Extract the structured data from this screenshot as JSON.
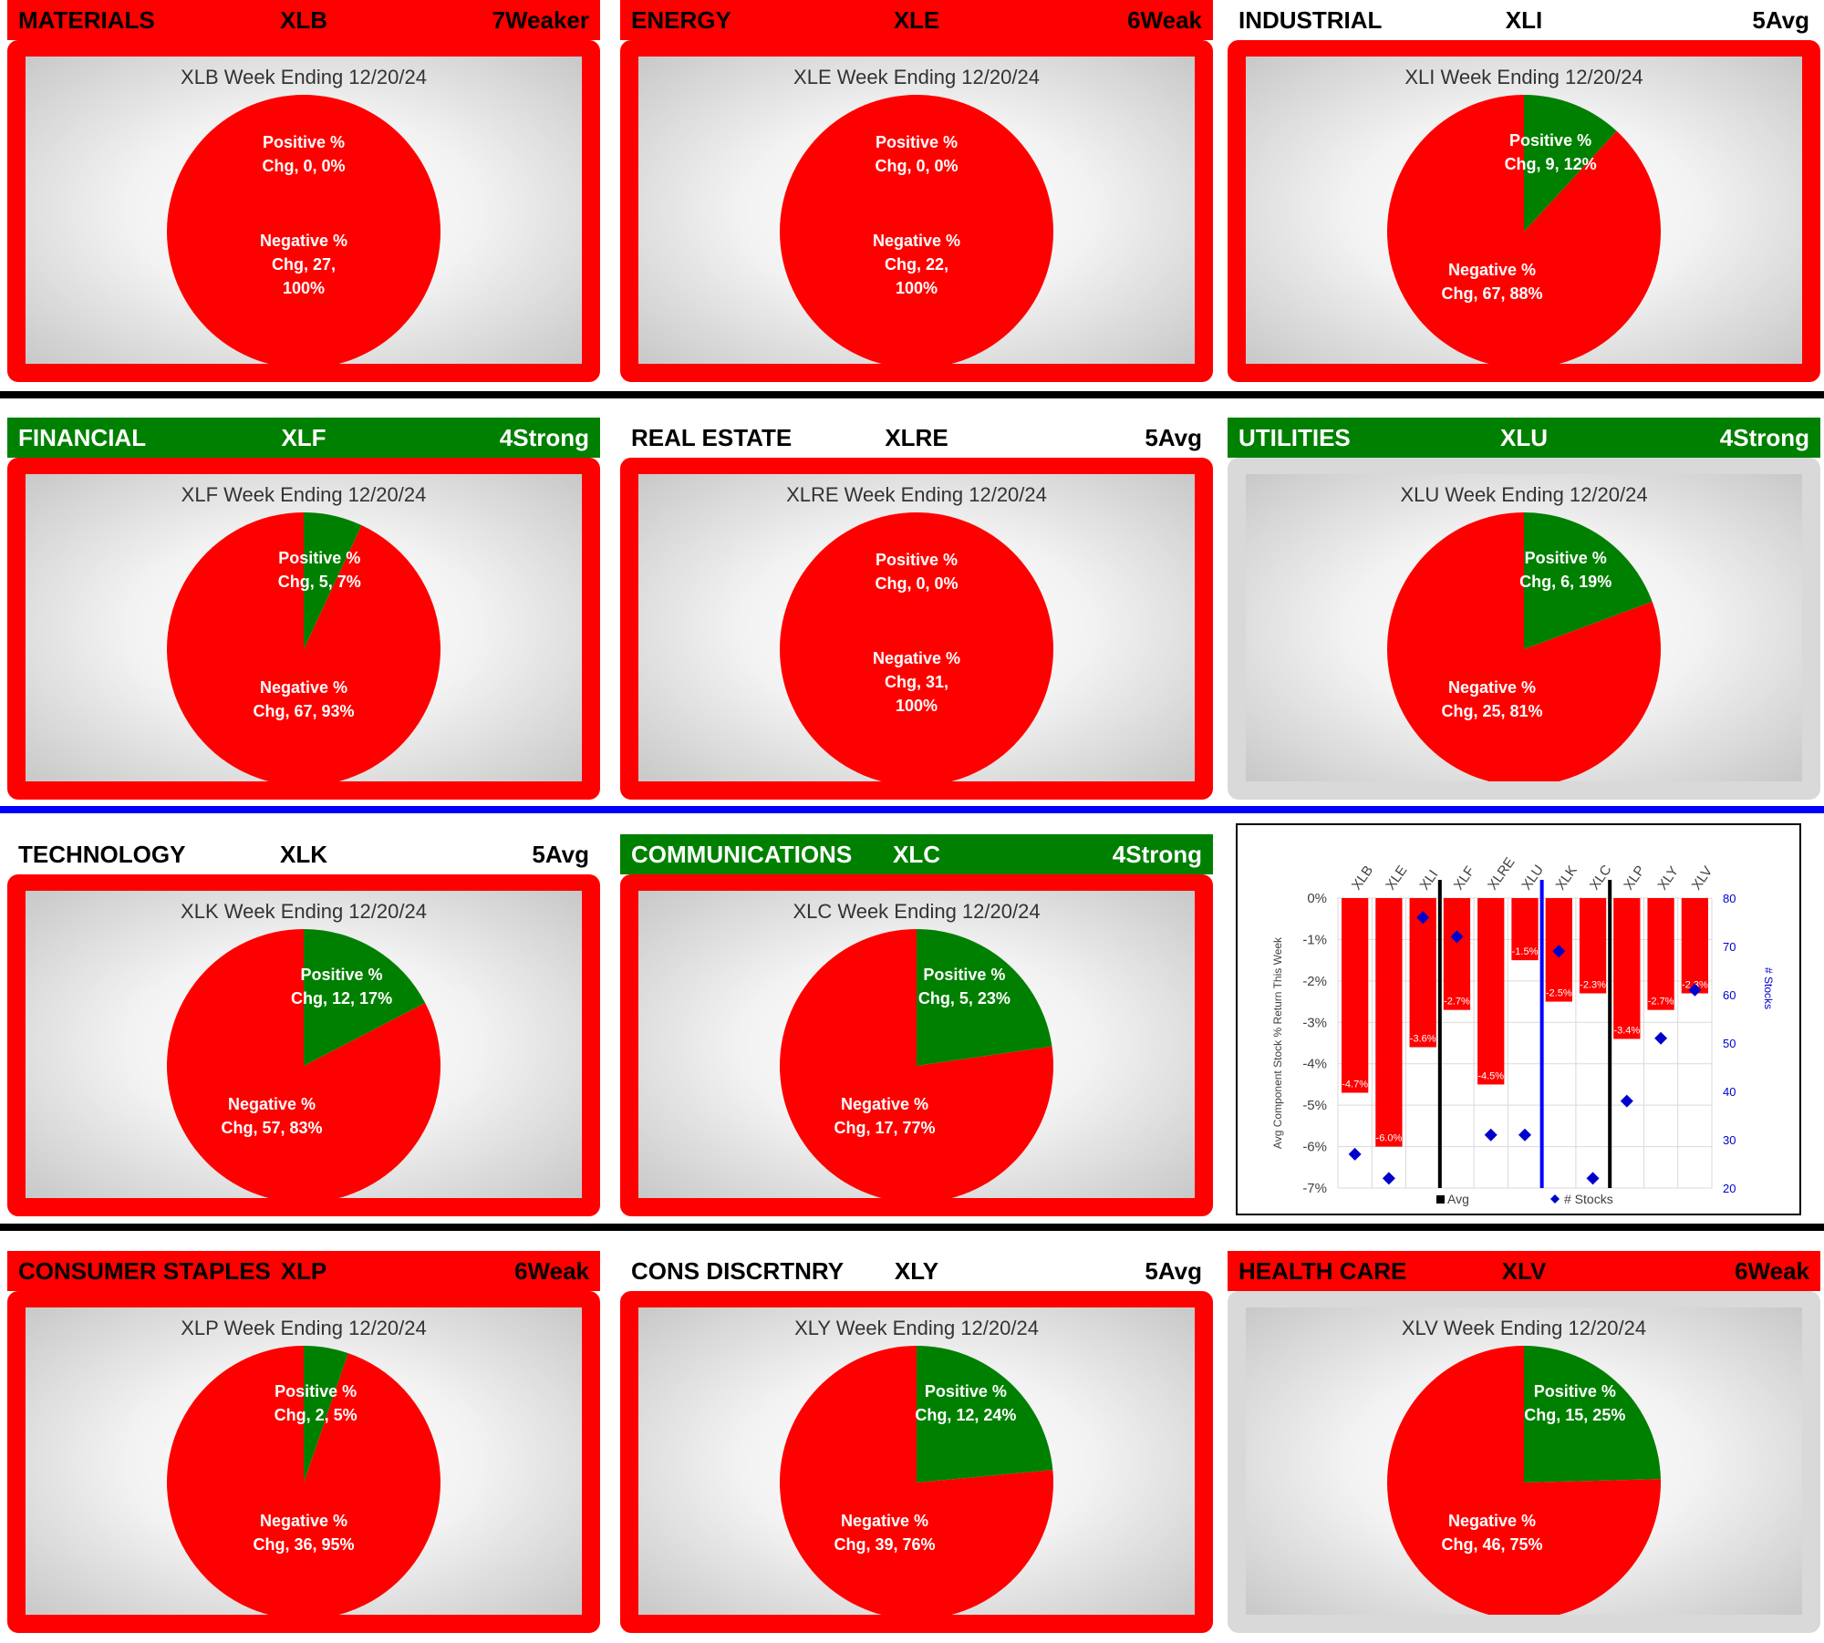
{
  "colors": {
    "negative": "#ff0000",
    "positive": "#008000",
    "frame_red": "#ff0000",
    "frame_gray": "#d9d9d9",
    "separator_black": "#000000",
    "separator_blue": "#0000ff",
    "marker_blue": "#0000cc"
  },
  "panels": [
    {
      "sector": "MATERIALS",
      "symbol": "XLB",
      "rating": "7Weaker",
      "header_style": "red",
      "frame_style": "red",
      "title": "XLB Week Ending 12/20/24",
      "positive_label": [
        "Positive %",
        "Chg, 0, 0%"
      ],
      "negative_label": [
        "Negative %",
        "Chg, 27,",
        "100%"
      ]
    },
    {
      "sector": "ENERGY",
      "symbol": "XLE",
      "rating": "6Weak",
      "header_style": "red",
      "frame_style": "red",
      "title": "XLE Week Ending 12/20/24",
      "positive_label": [
        "Positive %",
        "Chg, 0, 0%"
      ],
      "negative_label": [
        "Negative %",
        "Chg, 22,",
        "100%"
      ]
    },
    {
      "sector": "INDUSTRIAL",
      "symbol": "XLI",
      "rating": "5Avg",
      "header_style": "plain",
      "frame_style": "red",
      "title": "XLI Week Ending 12/20/24",
      "positive_label": [
        "Positive %",
        "Chg, 9, 12%"
      ],
      "negative_label": [
        "Negative %",
        "Chg, 67, 88%"
      ]
    },
    {
      "sector": "FINANCIAL",
      "symbol": "XLF",
      "rating": "4Strong",
      "header_style": "green",
      "frame_style": "red",
      "title": "XLF Week Ending 12/20/24",
      "positive_label": [
        "Positive %",
        "Chg, 5, 7%"
      ],
      "negative_label": [
        "Negative %",
        "Chg, 67, 93%"
      ]
    },
    {
      "sector": "REAL ESTATE",
      "symbol": "XLRE",
      "rating": "5Avg",
      "header_style": "plain",
      "frame_style": "red",
      "title": "XLRE Week Ending 12/20/24",
      "positive_label": [
        "Positive %",
        "Chg, 0, 0%"
      ],
      "negative_label": [
        "Negative %",
        "Chg, 31,",
        "100%"
      ]
    },
    {
      "sector": "UTILITIES",
      "symbol": "XLU",
      "rating": "4Strong",
      "header_style": "green",
      "frame_style": "gray",
      "title": "XLU Week Ending 12/20/24",
      "positive_label": [
        "Positive %",
        "Chg, 6, 19%"
      ],
      "negative_label": [
        "Negative %",
        "Chg, 25, 81%"
      ]
    },
    {
      "sector": "TECHNOLOGY",
      "symbol": "XLK",
      "rating": "5Avg",
      "header_style": "plain",
      "frame_style": "red",
      "title": "XLK Week Ending 12/20/24",
      "positive_label": [
        "Positive %",
        "Chg, 12, 17%"
      ],
      "negative_label": [
        "Negative %",
        "Chg, 57, 83%"
      ]
    },
    {
      "sector": "COMMUNICATIONS",
      "symbol": "XLC",
      "rating": "4Strong",
      "header_style": "green",
      "frame_style": "red",
      "title": "XLC Week Ending 12/20/24",
      "positive_label": [
        "Positive %",
        "Chg, 5, 23%"
      ],
      "negative_label": [
        "Negative %",
        "Chg, 17, 77%"
      ]
    },
    {
      "sector": "CONSUMER STAPLES",
      "symbol": "XLP",
      "rating": "6Weak",
      "header_style": "red",
      "frame_style": "red",
      "title": "XLP Week Ending 12/20/24",
      "positive_label": [
        "Positive %",
        "Chg, 2, 5%"
      ],
      "negative_label": [
        "Negative %",
        "Chg, 36, 95%"
      ]
    },
    {
      "sector": "CONS DISCRTNRY",
      "symbol": "XLY",
      "rating": "5Avg",
      "header_style": "plain",
      "frame_style": "red",
      "title": "XLY Week Ending 12/20/24",
      "positive_label": [
        "Positive %",
        "Chg, 12, 24%"
      ],
      "negative_label": [
        "Negative %",
        "Chg, 39, 76%"
      ]
    },
    {
      "sector": "HEALTH CARE",
      "symbol": "XLV",
      "rating": "6Weak",
      "header_style": "red",
      "frame_style": "gray",
      "title": "XLV Week Ending 12/20/24",
      "positive_label": [
        "Positive %",
        "Chg, 15, 25%"
      ],
      "negative_label": [
        "Negative %",
        "Chg, 46, 75%"
      ]
    }
  ],
  "chart_data": [
    {
      "type": "pie",
      "title": "XLB Week Ending 12/20/24",
      "labels": [
        "Positive % Chg",
        "Negative % Chg"
      ],
      "values": [
        0,
        27
      ],
      "percents": [
        0,
        100
      ]
    },
    {
      "type": "pie",
      "title": "XLE Week Ending 12/20/24",
      "labels": [
        "Positive % Chg",
        "Negative % Chg"
      ],
      "values": [
        0,
        22
      ],
      "percents": [
        0,
        100
      ]
    },
    {
      "type": "pie",
      "title": "XLI Week Ending 12/20/24",
      "labels": [
        "Positive % Chg",
        "Negative % Chg"
      ],
      "values": [
        9,
        67
      ],
      "percents": [
        12,
        88
      ]
    },
    {
      "type": "pie",
      "title": "XLF Week Ending 12/20/24",
      "labels": [
        "Positive % Chg",
        "Negative % Chg"
      ],
      "values": [
        5,
        67
      ],
      "percents": [
        7,
        93
      ]
    },
    {
      "type": "pie",
      "title": "XLRE Week Ending 12/20/24",
      "labels": [
        "Positive % Chg",
        "Negative % Chg"
      ],
      "values": [
        0,
        31
      ],
      "percents": [
        0,
        100
      ]
    },
    {
      "type": "pie",
      "title": "XLU Week Ending 12/20/24",
      "labels": [
        "Positive % Chg",
        "Negative % Chg"
      ],
      "values": [
        6,
        25
      ],
      "percents": [
        19,
        81
      ]
    },
    {
      "type": "pie",
      "title": "XLK Week Ending 12/20/24",
      "labels": [
        "Positive % Chg",
        "Negative % Chg"
      ],
      "values": [
        12,
        57
      ],
      "percents": [
        17,
        83
      ]
    },
    {
      "type": "pie",
      "title": "XLC Week Ending 12/20/24",
      "labels": [
        "Positive % Chg",
        "Negative % Chg"
      ],
      "values": [
        5,
        17
      ],
      "percents": [
        23,
        77
      ]
    },
    {
      "type": "pie",
      "title": "XLP Week Ending 12/20/24",
      "labels": [
        "Positive % Chg",
        "Negative % Chg"
      ],
      "values": [
        2,
        36
      ],
      "percents": [
        5,
        95
      ]
    },
    {
      "type": "pie",
      "title": "XLY Week Ending 12/20/24",
      "labels": [
        "Positive % Chg",
        "Negative % Chg"
      ],
      "values": [
        12,
        39
      ],
      "percents": [
        24,
        76
      ]
    },
    {
      "type": "pie",
      "title": "XLV Week Ending 12/20/24",
      "labels": [
        "Positive % Chg",
        "Negative % Chg"
      ],
      "values": [
        15,
        46
      ],
      "percents": [
        25,
        75
      ]
    },
    {
      "type": "bar",
      "categories": [
        "XLB",
        "XLE",
        "XLI",
        "XLF",
        "XLRE",
        "XLU",
        "XLK",
        "XLC",
        "XLP",
        "XLY",
        "XLV"
      ],
      "series": [
        {
          "name": "Avg",
          "axis": "left",
          "values": [
            -4.7,
            -6.0,
            -3.6,
            -2.7,
            -4.5,
            -1.5,
            -2.5,
            -2.3,
            -3.4,
            -2.7,
            -2.3
          ],
          "labels": [
            "-4.7%",
            "-6.0%",
            "-3.6%",
            "-2.7%",
            "-4.5%",
            "-1.5%",
            "-2.5%",
            "-2.3%",
            "-3.4%",
            "-2.7%",
            "-2.3%"
          ]
        },
        {
          "name": "# Stocks",
          "axis": "right",
          "type": "scatter",
          "values": [
            27,
            22,
            76,
            72,
            31,
            31,
            69,
            22,
            38,
            51,
            61
          ]
        }
      ],
      "ylabel": "Avg Component Stock % Return This Week",
      "y2label": "# Stocks",
      "ylim": [
        -7,
        0
      ],
      "y2lim": [
        20,
        80
      ],
      "yticks": [
        "0%",
        "-1%",
        "-2%",
        "-3%",
        "-4%",
        "-5%",
        "-6%",
        "-7%"
      ],
      "y2ticks": [
        "80",
        "70",
        "60",
        "50",
        "40",
        "30",
        "20"
      ],
      "vertical_dividers": [
        {
          "after": "XLI",
          "color": "#000000"
        },
        {
          "after": "XLU",
          "color": "#0000ff"
        },
        {
          "after": "XLC",
          "color": "#000000"
        }
      ],
      "grid": true,
      "legend": "bottom",
      "legend_items": [
        "Avg",
        "# Stocks"
      ]
    }
  ]
}
